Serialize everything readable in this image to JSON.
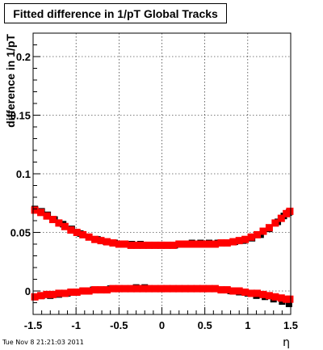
{
  "chart_data": {
    "type": "scatter",
    "title": "Fitted difference in 1/pT  Global Tracks",
    "xlabel": "η",
    "ylabel": "difference in 1/pT",
    "xlim": [
      -1.5,
      1.5
    ],
    "ylim": [
      -0.02,
      0.22
    ],
    "x_ticks": [
      "-1.5",
      "-1",
      "-0.5",
      "0",
      "0.5",
      "1",
      "1.5"
    ],
    "y_ticks": [
      "0",
      "0.05",
      "0.1",
      "0.15",
      "0.2"
    ],
    "grid": true,
    "series": [
      {
        "color": "#000000",
        "points": [
          [
            -1.48,
            0.07
          ],
          [
            -1.4,
            0.068
          ],
          [
            -1.33,
            0.065
          ],
          [
            -1.25,
            0.061
          ],
          [
            -1.15,
            0.057
          ],
          [
            -1.05,
            0.053
          ],
          [
            -0.95,
            0.049
          ],
          [
            -0.85,
            0.046
          ],
          [
            -0.75,
            0.044
          ],
          [
            -0.65,
            0.042
          ],
          [
            -0.55,
            0.041
          ],
          [
            -0.45,
            0.04
          ],
          [
            -0.35,
            0.04
          ],
          [
            -0.25,
            0.04
          ],
          [
            -0.15,
            0.039
          ],
          [
            -0.05,
            0.039
          ],
          [
            0.05,
            0.039
          ],
          [
            0.15,
            0.039
          ],
          [
            0.25,
            0.04
          ],
          [
            0.35,
            0.041
          ],
          [
            0.45,
            0.041
          ],
          [
            0.55,
            0.041
          ],
          [
            0.65,
            0.041
          ],
          [
            0.75,
            0.041
          ],
          [
            0.85,
            0.042
          ],
          [
            0.95,
            0.043
          ],
          [
            1.05,
            0.045
          ],
          [
            1.15,
            0.048
          ],
          [
            1.25,
            0.053
          ],
          [
            1.35,
            0.059
          ],
          [
            1.42,
            0.064
          ],
          [
            1.48,
            0.067
          ],
          [
            -1.48,
            -0.005
          ],
          [
            -1.4,
            -0.004
          ],
          [
            -1.3,
            -0.004
          ],
          [
            -1.2,
            -0.003
          ],
          [
            -1.1,
            -0.002
          ],
          [
            -1.0,
            -0.001
          ],
          [
            -0.9,
            0.0
          ],
          [
            -0.8,
            0.001
          ],
          [
            -0.7,
            0.001
          ],
          [
            -0.6,
            0.002
          ],
          [
            -0.5,
            0.002
          ],
          [
            -0.4,
            0.002
          ],
          [
            -0.3,
            0.003
          ],
          [
            -0.2,
            0.003
          ],
          [
            -0.1,
            0.002
          ],
          [
            0.0,
            0.002
          ],
          [
            0.1,
            0.002
          ],
          [
            0.2,
            0.002
          ],
          [
            0.3,
            0.002
          ],
          [
            0.4,
            0.002
          ],
          [
            0.5,
            0.002
          ],
          [
            0.6,
            0.002
          ],
          [
            0.7,
            0.001
          ],
          [
            0.8,
            0.0
          ],
          [
            0.9,
            -0.001
          ],
          [
            1.0,
            -0.002
          ],
          [
            1.1,
            -0.004
          ],
          [
            1.2,
            -0.005
          ],
          [
            1.3,
            -0.007
          ],
          [
            1.4,
            -0.009
          ],
          [
            1.48,
            -0.011
          ]
        ]
      },
      {
        "color": "#ff0000",
        "points": [
          [
            -1.48,
            0.069
          ],
          [
            -1.41,
            0.067
          ],
          [
            -1.34,
            0.064
          ],
          [
            -1.27,
            0.061
          ],
          [
            -1.2,
            0.058
          ],
          [
            -1.13,
            0.055
          ],
          [
            -1.06,
            0.052
          ],
          [
            -0.99,
            0.05
          ],
          [
            -0.92,
            0.048
          ],
          [
            -0.85,
            0.046
          ],
          [
            -0.78,
            0.044
          ],
          [
            -0.71,
            0.043
          ],
          [
            -0.64,
            0.042
          ],
          [
            -0.57,
            0.041
          ],
          [
            -0.5,
            0.04
          ],
          [
            -0.43,
            0.04
          ],
          [
            -0.36,
            0.039
          ],
          [
            -0.29,
            0.039
          ],
          [
            -0.22,
            0.039
          ],
          [
            -0.15,
            0.039
          ],
          [
            -0.08,
            0.039
          ],
          [
            -0.01,
            0.039
          ],
          [
            0.06,
            0.039
          ],
          [
            0.13,
            0.039
          ],
          [
            0.2,
            0.04
          ],
          [
            0.27,
            0.04
          ],
          [
            0.34,
            0.04
          ],
          [
            0.41,
            0.04
          ],
          [
            0.48,
            0.04
          ],
          [
            0.55,
            0.04
          ],
          [
            0.62,
            0.04
          ],
          [
            0.69,
            0.041
          ],
          [
            0.76,
            0.041
          ],
          [
            0.83,
            0.042
          ],
          [
            0.9,
            0.043
          ],
          [
            0.97,
            0.044
          ],
          [
            1.04,
            0.046
          ],
          [
            1.11,
            0.048
          ],
          [
            1.18,
            0.051
          ],
          [
            1.25,
            0.054
          ],
          [
            1.32,
            0.058
          ],
          [
            1.39,
            0.062
          ],
          [
            1.45,
            0.066
          ],
          [
            1.49,
            0.068
          ],
          [
            -1.48,
            -0.005
          ],
          [
            -1.41,
            -0.004
          ],
          [
            -1.34,
            -0.003
          ],
          [
            -1.27,
            -0.003
          ],
          [
            -1.2,
            -0.002
          ],
          [
            -1.13,
            -0.002
          ],
          [
            -1.06,
            -0.001
          ],
          [
            -0.99,
            -0.001
          ],
          [
            -0.92,
            0.0
          ],
          [
            -0.85,
            0.0
          ],
          [
            -0.78,
            0.001
          ],
          [
            -0.71,
            0.001
          ],
          [
            -0.64,
            0.001
          ],
          [
            -0.57,
            0.002
          ],
          [
            -0.5,
            0.002
          ],
          [
            -0.43,
            0.002
          ],
          [
            -0.36,
            0.002
          ],
          [
            -0.29,
            0.002
          ],
          [
            -0.22,
            0.002
          ],
          [
            -0.15,
            0.002
          ],
          [
            -0.08,
            0.002
          ],
          [
            -0.01,
            0.002
          ],
          [
            0.06,
            0.002
          ],
          [
            0.13,
            0.002
          ],
          [
            0.2,
            0.002
          ],
          [
            0.27,
            0.002
          ],
          [
            0.34,
            0.002
          ],
          [
            0.41,
            0.002
          ],
          [
            0.48,
            0.002
          ],
          [
            0.55,
            0.002
          ],
          [
            0.62,
            0.002
          ],
          [
            0.69,
            0.001
          ],
          [
            0.76,
            0.001
          ],
          [
            0.83,
            0.0
          ],
          [
            0.9,
            0.0
          ],
          [
            0.97,
            -0.001
          ],
          [
            1.04,
            -0.002
          ],
          [
            1.11,
            -0.002
          ],
          [
            1.18,
            -0.003
          ],
          [
            1.25,
            -0.004
          ],
          [
            1.32,
            -0.005
          ],
          [
            1.39,
            -0.006
          ],
          [
            1.45,
            -0.007
          ],
          [
            1.49,
            -0.007
          ]
        ]
      }
    ]
  },
  "footer": {
    "timestamp": "Tue Nov  8 21:21:03 2011"
  }
}
